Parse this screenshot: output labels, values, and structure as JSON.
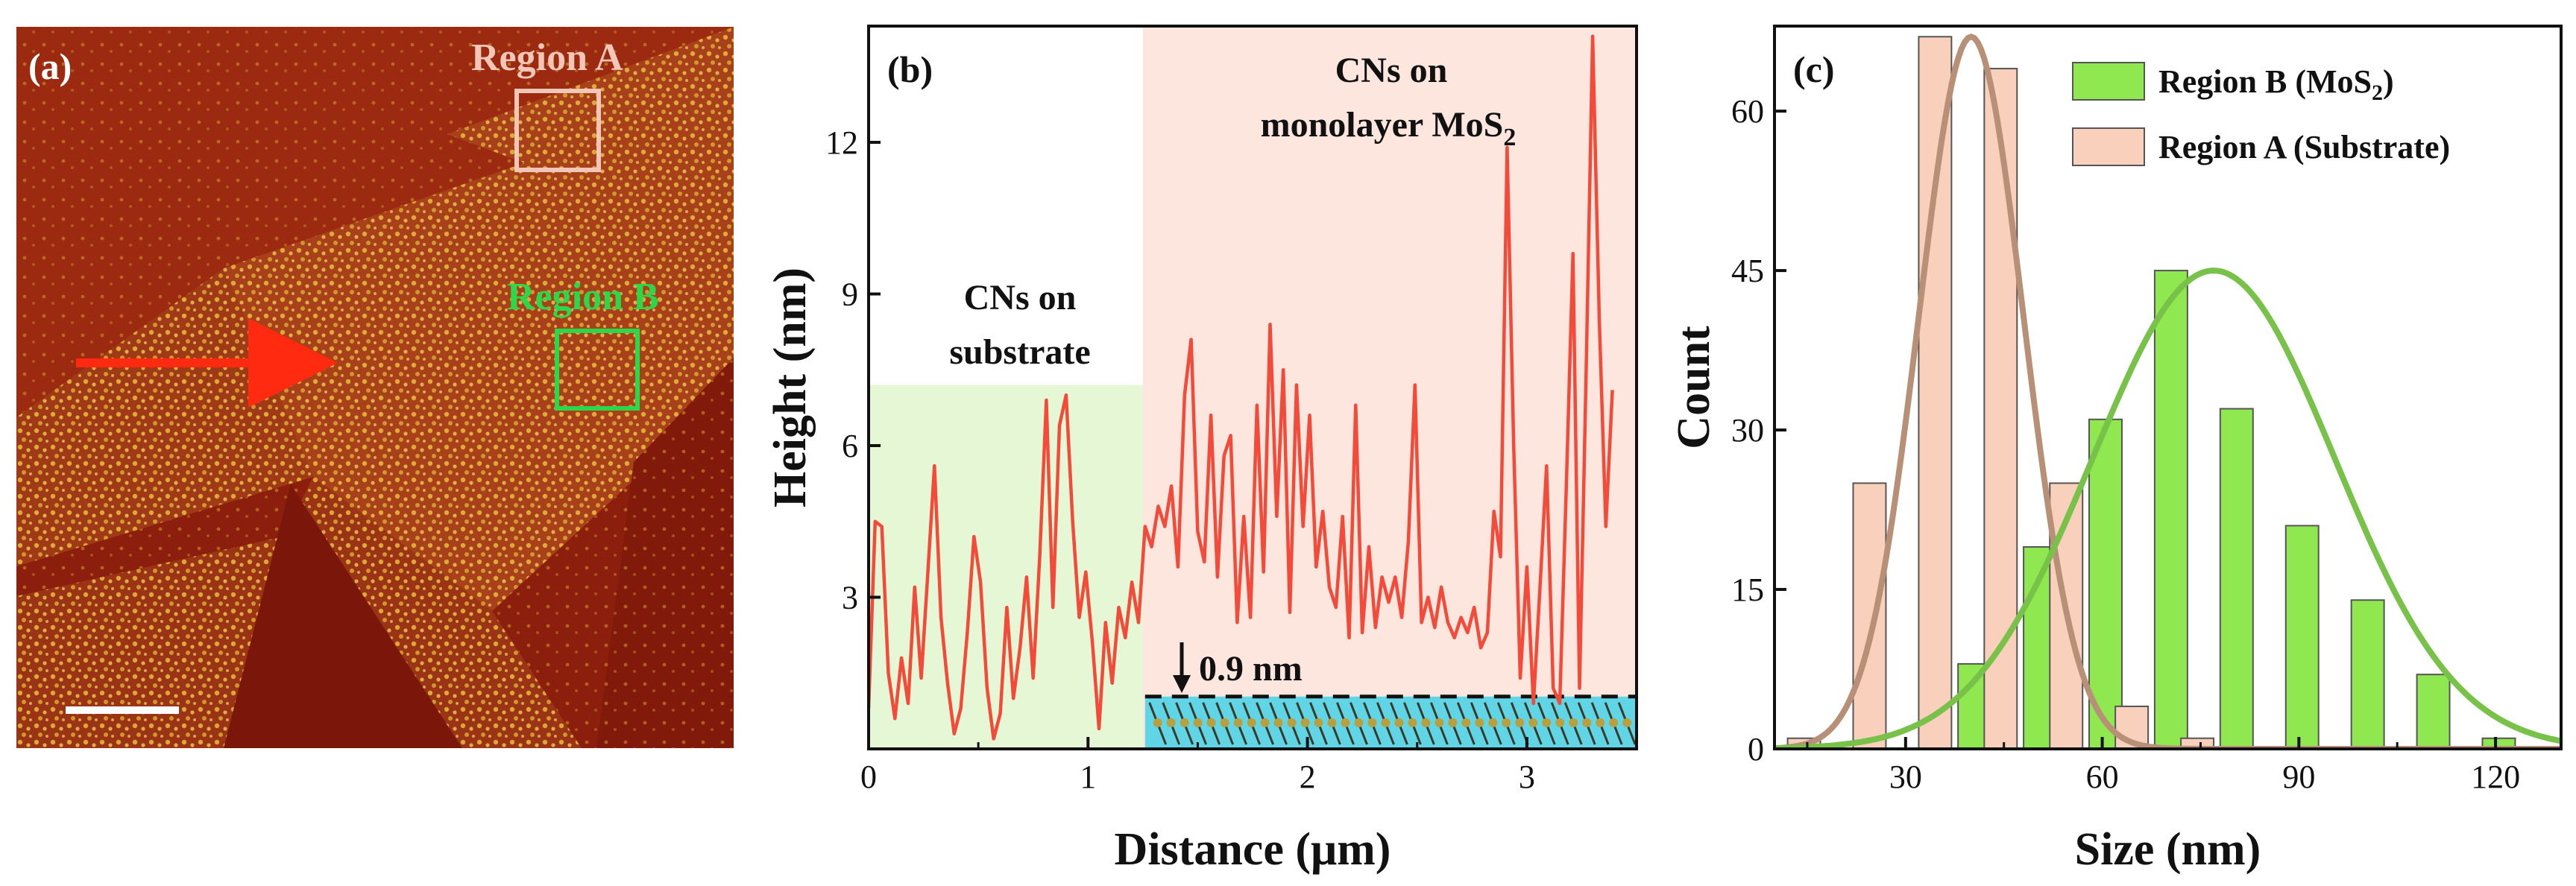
{
  "panel_a": {
    "label": "(a)",
    "region_a_label": "Region A",
    "region_b_label": "Region B",
    "colors": {
      "background": "#8b1e0c",
      "particle": "#e6b83a",
      "region_a": "#f3c7b8",
      "region_b": "#2bd84a",
      "arrow": "#ff2a10",
      "scale_bar": "#ffffff"
    }
  },
  "panel_b": {
    "label": "(b)",
    "annotation_substrate": [
      "CNs on",
      "substrate"
    ],
    "annotation_mos2_line1": "CNs on",
    "annotation_mos2_line2_prefix": "monolayer MoS",
    "annotation_mos2_line2_sub": "2",
    "thickness_label": "0.9 nm",
    "colors": {
      "line": "#f44a3a",
      "substrate_shade": "#e6f7d6",
      "mos2_shade": "#fde6de",
      "layer": "#4fd3e6"
    }
  },
  "panel_c": {
    "label": "(c)",
    "legend": {
      "b_prefix": "Region B (MoS",
      "b_sub": "2",
      "b_suffix": ")",
      "a_text": "Region A (Substrate)"
    },
    "colors": {
      "region_b_bar": "#8fe84f",
      "region_a_bar": "#f9d0bc",
      "region_b_fit": "#78c24a",
      "region_a_fit": "#b89078"
    }
  },
  "chart_data": [
    {
      "type": "line",
      "xlabel": "Distance (μm)",
      "ylabel": "Height (nm)",
      "xlim": [
        0,
        3.5
      ],
      "ylim": [
        0,
        14.3
      ],
      "xticks": [
        0,
        1,
        2,
        3
      ],
      "yticks": [
        3,
        6,
        9,
        12
      ],
      "substrate_region_x": [
        0,
        1.25
      ],
      "mos2_region_x": [
        1.25,
        3.5
      ],
      "layer_thickness_nm": 0.9,
      "series": [
        {
          "x": [
            0.0,
            0.03,
            0.06,
            0.09,
            0.12,
            0.15,
            0.18,
            0.21,
            0.24,
            0.27,
            0.3,
            0.33,
            0.36,
            0.39,
            0.42,
            0.45,
            0.48,
            0.51,
            0.54,
            0.57,
            0.6,
            0.63,
            0.66,
            0.69,
            0.72,
            0.75,
            0.78,
            0.81,
            0.84,
            0.87,
            0.9,
            0.93,
            0.96,
            0.99,
            1.02,
            1.05,
            1.08,
            1.11,
            1.14,
            1.17,
            1.2,
            1.23,
            1.26,
            1.29,
            1.32,
            1.35,
            1.38,
            1.41,
            1.44,
            1.47,
            1.5,
            1.53,
            1.56,
            1.59,
            1.62,
            1.65,
            1.68,
            1.71,
            1.74,
            1.77,
            1.8,
            1.83,
            1.86,
            1.89,
            1.92,
            1.95,
            1.98,
            2.01,
            2.04,
            2.07,
            2.1,
            2.13,
            2.16,
            2.19,
            2.22,
            2.25,
            2.28,
            2.31,
            2.34,
            2.37,
            2.4,
            2.43,
            2.46,
            2.49,
            2.52,
            2.55,
            2.58,
            2.61,
            2.64,
            2.67,
            2.7,
            2.73,
            2.76,
            2.79,
            2.82,
            2.85,
            2.88,
            2.91,
            2.94,
            2.97,
            3.0,
            3.03,
            3.06,
            3.09,
            3.12,
            3.15,
            3.18,
            3.21,
            3.24,
            3.27,
            3.3,
            3.33,
            3.36,
            3.39
          ],
          "values": [
            0.8,
            4.5,
            4.4,
            1.5,
            0.6,
            1.8,
            0.9,
            3.2,
            1.4,
            3.5,
            5.6,
            2.6,
            1.3,
            0.3,
            0.8,
            2.3,
            4.2,
            3.3,
            1.2,
            0.2,
            0.7,
            2.8,
            1.0,
            2.0,
            3.4,
            1.4,
            3.8,
            6.9,
            2.8,
            6.4,
            7.0,
            4.5,
            2.6,
            3.5,
            2.1,
            0.4,
            2.5,
            1.3,
            2.8,
            2.2,
            3.3,
            2.5,
            4.4,
            4.0,
            4.8,
            4.4,
            5.2,
            3.6,
            7.0,
            8.1,
            4.3,
            3.7,
            6.6,
            3.4,
            5.8,
            6.2,
            2.5,
            4.6,
            2.6,
            6.8,
            3.5,
            8.4,
            4.6,
            7.5,
            2.7,
            7.2,
            4.4,
            6.6,
            3.6,
            4.7,
            3.2,
            2.8,
            4.6,
            2.2,
            6.8,
            2.3,
            4.0,
            2.4,
            3.4,
            2.9,
            3.4,
            2.6,
            4.1,
            7.2,
            2.5,
            3.0,
            2.4,
            3.2,
            2.5,
            2.2,
            2.6,
            2.3,
            2.8,
            2.0,
            2.3,
            4.7,
            3.8,
            11.9,
            6.0,
            1.4,
            3.6,
            0.9,
            3.2,
            5.6,
            1.2,
            0.9,
            5.2,
            9.8,
            1.2,
            7.4,
            14.1,
            8.5,
            4.4,
            7.1
          ]
        }
      ]
    },
    {
      "type": "bar",
      "xlabel": "Size (nm)",
      "ylabel": "Count",
      "xlim": [
        10,
        130
      ],
      "ylim": [
        0,
        68
      ],
      "xticks": [
        30,
        60,
        90,
        120
      ],
      "yticks": [
        0,
        15,
        30,
        45,
        60
      ],
      "series": [
        {
          "name": "Region B (MoS2)",
          "bin_centers": [
            43,
            53,
            63,
            73,
            83,
            93,
            103,
            113,
            123
          ],
          "values": [
            8,
            19,
            31,
            45,
            32,
            21,
            14,
            7,
            1
          ],
          "fit": {
            "type": "gaussian",
            "mean": 77,
            "sigma": 18.5,
            "peak": 45
          }
        },
        {
          "name": "Region A (Substrate)",
          "bin_centers": [
            17,
            27,
            37,
            47,
            57,
            67,
            77
          ],
          "values": [
            1,
            25,
            67,
            64,
            25,
            4,
            1
          ],
          "fit": {
            "type": "gaussian",
            "mean": 40,
            "sigma": 8,
            "peak": 67
          }
        }
      ]
    }
  ]
}
